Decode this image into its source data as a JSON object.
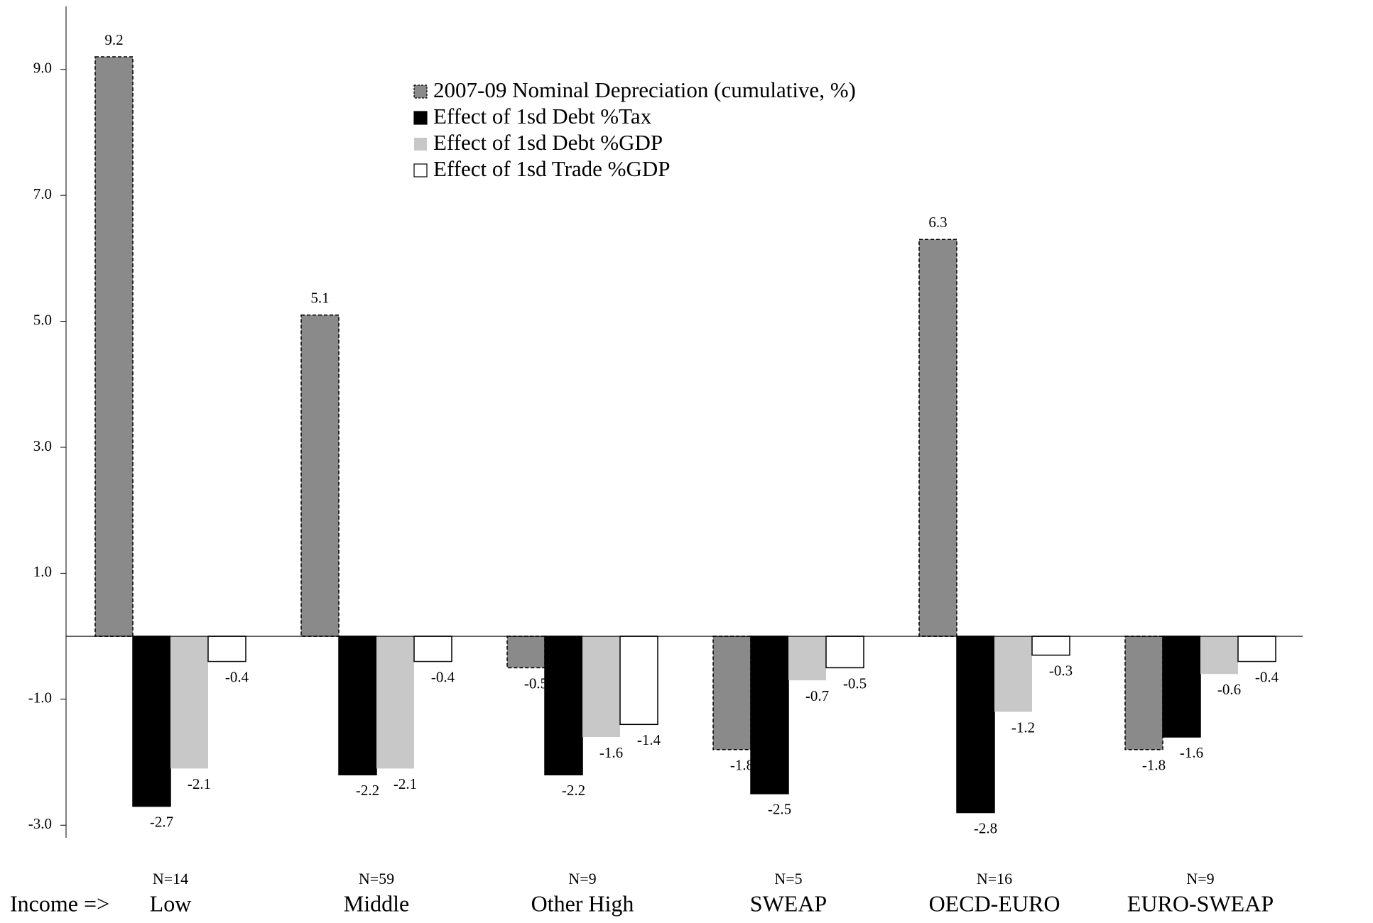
{
  "chart_data": {
    "type": "bar",
    "x_label": "Income =>",
    "categories": [
      "Low",
      "Middle",
      "Other High",
      "SWEAP",
      "OECD-EURO",
      "EURO-SWEAP"
    ],
    "n_labels": [
      "N=14",
      "N=59",
      "N=9",
      "N=5",
      "N=16",
      "N=9"
    ],
    "series": [
      {
        "name": "2007-09 Nominal Depreciation (cumulative, %)",
        "color": "#8c8c8c",
        "values": [
          9.2,
          5.1,
          -0.5,
          -1.8,
          6.3,
          -1.8
        ]
      },
      {
        "name": "Effect of 1sd Debt %Tax",
        "color": "#000000",
        "values": [
          -2.7,
          -2.2,
          -2.2,
          -2.5,
          -2.8,
          -1.6
        ]
      },
      {
        "name": "Effect of 1sd Debt %GDP",
        "color": "#c8c8c8",
        "values": [
          -2.1,
          -2.1,
          -1.6,
          -0.7,
          -1.2,
          -0.6
        ]
      },
      {
        "name": "Effect of 1sd Trade %GDP",
        "color": "#ffffff",
        "values": [
          -0.4,
          -0.4,
          -1.4,
          -0.5,
          -0.3,
          -0.4
        ]
      }
    ],
    "ylim": [
      -3.2,
      10
    ],
    "yticks": [
      {
        "value": 9,
        "label": "9.0"
      },
      {
        "value": 7,
        "label": "7.0"
      },
      {
        "value": 5,
        "label": "5.0"
      },
      {
        "value": 3,
        "label": "3.0"
      },
      {
        "value": 1,
        "label": "1.0"
      },
      {
        "value": -1,
        "label": "-1.0"
      },
      {
        "value": -3,
        "label": "-3.0"
      }
    ],
    "legend": "top-center"
  }
}
